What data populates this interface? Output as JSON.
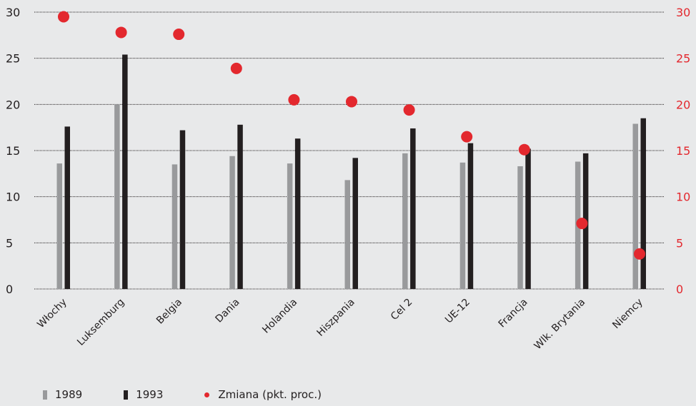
{
  "chart_data": {
    "type": "bar",
    "categories": [
      "Włochy",
      "Luksemburg",
      "Belgia",
      "Dania",
      "Holandia",
      "Hiszpania",
      "Cel 2",
      "UE-12",
      "Francja",
      "Wlk. Brytania",
      "Niemcy"
    ],
    "series": [
      {
        "name": "1989",
        "type": "bar",
        "axis": "left",
        "color": "#999a9c",
        "values": [
          13.6,
          20.0,
          13.5,
          14.4,
          13.6,
          11.8,
          14.7,
          13.7,
          13.3,
          13.8,
          17.9
        ]
      },
      {
        "name": "1993",
        "type": "bar",
        "axis": "left",
        "color": "#231f20",
        "values": [
          17.6,
          25.4,
          17.2,
          17.8,
          16.3,
          14.2,
          17.4,
          15.8,
          15.2,
          14.7,
          18.5
        ]
      },
      {
        "name": "Zmiana (pkt. proc.)",
        "type": "scatter",
        "axis": "right",
        "color": "#e3282e",
        "values": [
          29.5,
          27.8,
          27.6,
          23.9,
          20.5,
          20.3,
          19.4,
          16.5,
          15.1,
          7.1,
          3.8
        ]
      }
    ],
    "yticks_left": [
      0,
      5,
      10,
      15,
      20,
      25,
      30
    ],
    "yticks_right": [
      0,
      5,
      10,
      15,
      20,
      25,
      30
    ],
    "ylim": [
      0,
      30
    ],
    "grid": "horizontal-dotted",
    "legend_position": "bottom-left"
  },
  "legend": {
    "items": [
      {
        "label": "1989",
        "color": "#999a9c",
        "shape": "bar"
      },
      {
        "label": "1993",
        "color": "#231f20",
        "shape": "bar"
      },
      {
        "label": "Zmiana (pkt. proc.)",
        "color": "#e3282e",
        "shape": "dot"
      }
    ]
  }
}
